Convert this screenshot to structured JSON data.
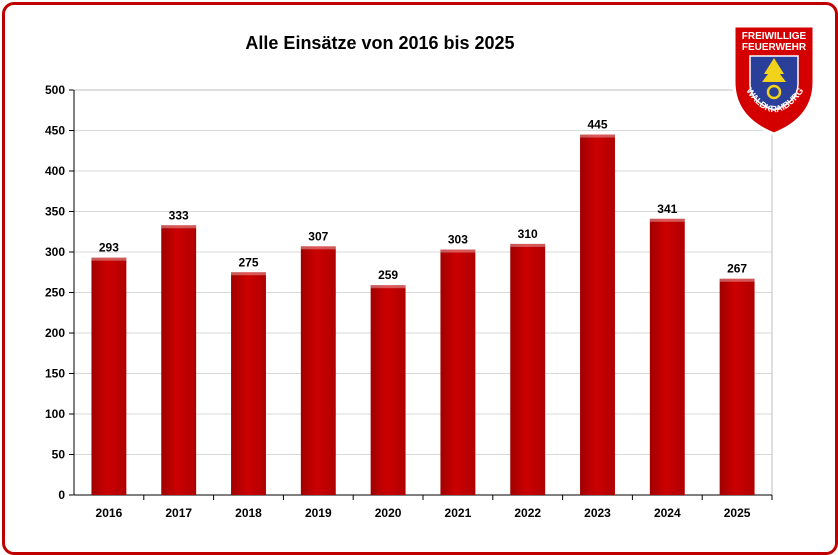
{
  "chart_data": {
    "type": "bar",
    "title": "Alle Einsätze  von 2016 bis 2025",
    "categories": [
      "2016",
      "2017",
      "2018",
      "2019",
      "2020",
      "2021",
      "2022",
      "2023",
      "2024",
      "2025"
    ],
    "values": [
      293,
      333,
      275,
      307,
      259,
      303,
      310,
      445,
      341,
      267
    ],
    "ylim": [
      0,
      500
    ],
    "yticks": [
      0,
      50,
      100,
      150,
      200,
      250,
      300,
      350,
      400,
      450,
      500
    ],
    "grid": true,
    "bar_color": "#cc0000",
    "legend": "none"
  },
  "logo": {
    "line1": "FREIWILLIGE",
    "line2": "FEUERWEHR",
    "line3": "WALDKRAIBURG",
    "colors": {
      "red": "#d40000",
      "blue": "#2a3f9a",
      "yellow": "#f2d21b"
    }
  },
  "colors": {
    "frame": "#c00000",
    "grid": "#d9d9d9"
  }
}
